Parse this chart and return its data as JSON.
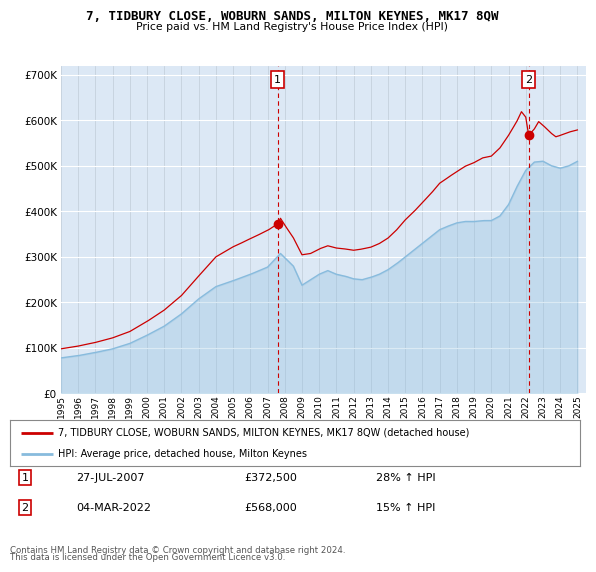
{
  "title": "7, TIDBURY CLOSE, WOBURN SANDS, MILTON KEYNES, MK17 8QW",
  "subtitle": "Price paid vs. HM Land Registry's House Price Index (HPI)",
  "legend_line1": "7, TIDBURY CLOSE, WOBURN SANDS, MILTON KEYNES, MK17 8QW (detached house)",
  "legend_line2": "HPI: Average price, detached house, Milton Keynes",
  "annotation1_date": "27-JUL-2007",
  "annotation1_price": "£372,500",
  "annotation1_hpi": "28% ↑ HPI",
  "annotation2_date": "04-MAR-2022",
  "annotation2_price": "£568,000",
  "annotation2_hpi": "15% ↑ HPI",
  "footer1": "Contains HM Land Registry data © Crown copyright and database right 2024.",
  "footer2": "This data is licensed under the Open Government Licence v3.0.",
  "property_color": "#cc0000",
  "hpi_color": "#88bbdd",
  "fig_bg_color": "#ffffff",
  "plot_bg_color": "#dce8f5",
  "ylim": [
    0,
    720000
  ],
  "yticks": [
    0,
    100000,
    200000,
    300000,
    400000,
    500000,
    600000,
    700000
  ],
  "ytick_labels": [
    "£0",
    "£100K",
    "£200K",
    "£300K",
    "£400K",
    "£500K",
    "£600K",
    "£700K"
  ],
  "sale1_year": 2007.58,
  "sale1_price": 372500,
  "sale2_year": 2022.17,
  "sale2_price": 568000
}
